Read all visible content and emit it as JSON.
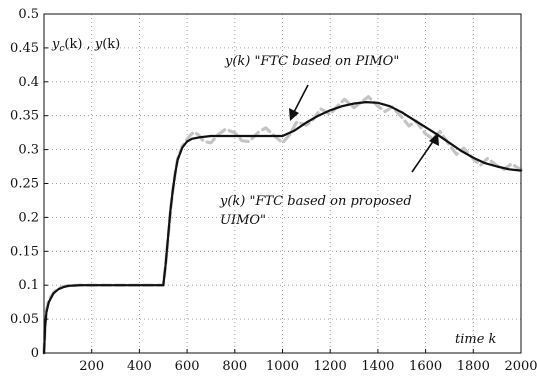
{
  "chart_data": {
    "type": "line",
    "xlim": [
      0,
      2000
    ],
    "ylim": [
      0,
      0.5
    ],
    "x_ticks": [
      200,
      400,
      600,
      800,
      1000,
      1200,
      1400,
      1600,
      1800,
      2000
    ],
    "y_ticks": [
      0,
      0.05,
      0.1,
      0.15,
      0.2,
      0.25,
      0.3,
      0.35,
      0.4,
      0.45,
      0.5
    ],
    "grid": true,
    "ylabel": "y_c(k) , y(k)",
    "xlabel": "time k",
    "annotations": [
      {
        "text": "y(k) \"FTC based on PIMO\""
      },
      {
        "text": "y(k) \"FTC based on proposed"
      },
      {
        "text": "UIMO\""
      }
    ],
    "series": [
      {
        "style": "solid",
        "color": "#111111",
        "x": [
          0,
          5,
          10,
          20,
          40,
          60,
          80,
          100,
          150,
          200,
          300,
          400,
          500,
          510,
          520,
          530,
          540,
          550,
          560,
          580,
          600,
          620,
          650,
          700,
          800,
          900,
          1000,
          1050,
          1100,
          1150,
          1200,
          1250,
          1300,
          1350,
          1400,
          1450,
          1500,
          1550,
          1600,
          1650,
          1700,
          1750,
          1800,
          1850,
          1900,
          1950,
          2000
        ],
        "y": [
          0,
          0.04,
          0.06,
          0.075,
          0.088,
          0.094,
          0.097,
          0.099,
          0.1,
          0.1,
          0.1,
          0.1,
          0.1,
          0.13,
          0.17,
          0.21,
          0.24,
          0.265,
          0.285,
          0.303,
          0.312,
          0.316,
          0.318,
          0.32,
          0.32,
          0.32,
          0.32,
          0.328,
          0.34,
          0.35,
          0.358,
          0.364,
          0.368,
          0.37,
          0.369,
          0.364,
          0.355,
          0.344,
          0.333,
          0.322,
          0.31,
          0.298,
          0.288,
          0.28,
          0.275,
          0.271,
          0.269
        ]
      },
      {
        "style": "dashed",
        "color": "#c4c4c4",
        "x": [
          0,
          5,
          10,
          20,
          40,
          60,
          80,
          100,
          150,
          200,
          300,
          400,
          500,
          510,
          520,
          530,
          540,
          550,
          560,
          580,
          600,
          615,
          630,
          650,
          670,
          700,
          730,
          760,
          800,
          830,
          860,
          900,
          930,
          960,
          1000,
          1030,
          1060,
          1100,
          1130,
          1160,
          1200,
          1230,
          1260,
          1300,
          1330,
          1360,
          1400,
          1430,
          1460,
          1500,
          1530,
          1560,
          1600,
          1630,
          1660,
          1700,
          1730,
          1760,
          1800,
          1830,
          1860,
          1900,
          1930,
          1960,
          2000
        ],
        "y": [
          0,
          0.045,
          0.063,
          0.078,
          0.089,
          0.095,
          0.098,
          0.099,
          0.1,
          0.1,
          0.1,
          0.1,
          0.1,
          0.13,
          0.168,
          0.208,
          0.24,
          0.265,
          0.286,
          0.305,
          0.315,
          0.322,
          0.326,
          0.321,
          0.312,
          0.31,
          0.322,
          0.33,
          0.325,
          0.313,
          0.312,
          0.326,
          0.332,
          0.322,
          0.31,
          0.322,
          0.341,
          0.336,
          0.345,
          0.36,
          0.352,
          0.364,
          0.374,
          0.362,
          0.37,
          0.378,
          0.364,
          0.356,
          0.363,
          0.348,
          0.335,
          0.342,
          0.323,
          0.316,
          0.327,
          0.307,
          0.293,
          0.302,
          0.286,
          0.277,
          0.287,
          0.276,
          0.271,
          0.279,
          0.27
        ]
      }
    ]
  }
}
